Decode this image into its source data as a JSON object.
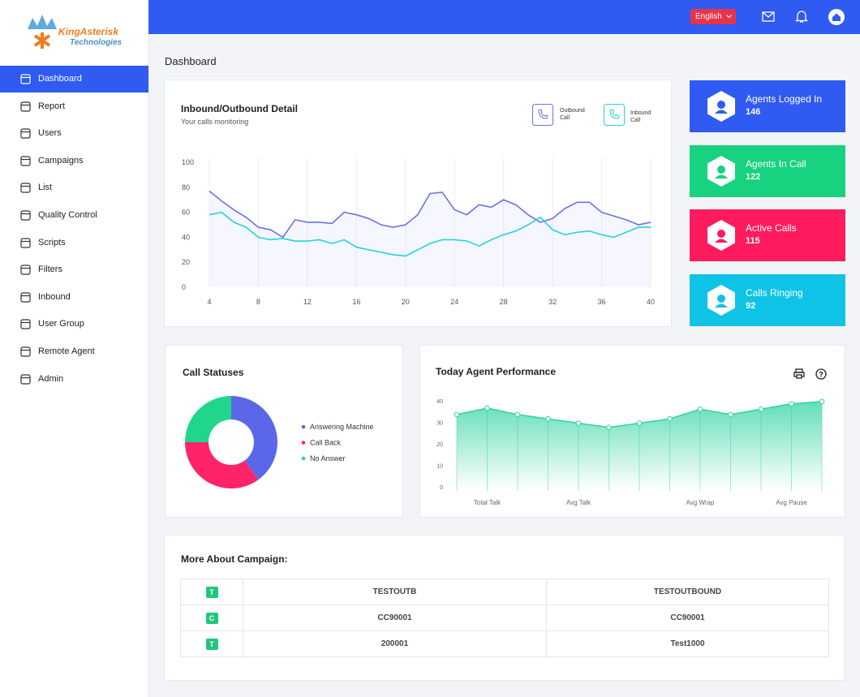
{
  "logo": {
    "brand": "KingAsterisk",
    "tagline": "Technologies"
  },
  "header": {
    "language": "English"
  },
  "nav": [
    "Dashboard",
    "Report",
    "Users",
    "Campaigns",
    "List",
    "Quality Control",
    "Scripts",
    "Filters",
    "Inbound",
    "User Group",
    "Remote Agent",
    "Admin"
  ],
  "page_title": "Dashboard",
  "stats": [
    {
      "label": "Agents Logged In",
      "value": 146,
      "color": "#2f5bf3"
    },
    {
      "label": "Agents In Call",
      "value": 122,
      "color": "#17d27e"
    },
    {
      "label": "Active Calls",
      "value": 115,
      "color": "#ff1b5e"
    },
    {
      "label": "Calls Ringing",
      "value": 92,
      "color": "#0fc3e6"
    }
  ],
  "chart_data": [
    {
      "type": "line",
      "title": "Inbound/Outbound Detail",
      "subtitle": "Your calls monitoring",
      "x": [
        4,
        5,
        6,
        7,
        8,
        9,
        10,
        11,
        12,
        13,
        14,
        15,
        16,
        17,
        18,
        19,
        20,
        21,
        22,
        23,
        24,
        25,
        26,
        27,
        28,
        29,
        30,
        31,
        32,
        33,
        34,
        35,
        36,
        37,
        38,
        39,
        40
      ],
      "xlim": [
        4,
        40
      ],
      "ylim": [
        0,
        100
      ],
      "xticks": [
        4,
        8,
        12,
        16,
        20,
        24,
        28,
        32,
        36,
        40
      ],
      "yticks": [
        0,
        20,
        40,
        60,
        80,
        100
      ],
      "grid": true,
      "series": [
        {
          "name": "Outbound Call",
          "color": "#6b72e6",
          "values": [
            77,
            69,
            62,
            56,
            48,
            46,
            40,
            54,
            52,
            52,
            51,
            60,
            58,
            55,
            50,
            48,
            50,
            58,
            75,
            76,
            62,
            58,
            66,
            64,
            70,
            66,
            58,
            52,
            55,
            63,
            68,
            68,
            60,
            57,
            54,
            50,
            52
          ]
        },
        {
          "name": "Inbound Call",
          "color": "#22d3e0",
          "values": [
            58,
            60,
            52,
            48,
            40,
            38,
            39,
            37,
            37,
            38,
            35,
            38,
            32,
            30,
            28,
            26,
            25,
            30,
            35,
            38,
            38,
            37,
            33,
            38,
            42,
            45,
            50,
            56,
            46,
            42,
            44,
            45,
            42,
            40,
            44,
            48,
            48
          ]
        }
      ]
    },
    {
      "type": "pie",
      "title": "Call Statuses",
      "categories": [
        "Answering Machine",
        "Call Back",
        "No Answer"
      ],
      "values": [
        40,
        35,
        25
      ],
      "colors": [
        "#5b67e8",
        "#ff2467",
        "#1fd68a"
      ]
    },
    {
      "type": "area",
      "title": "Today Agent Performance",
      "categories": [
        null,
        "Total Talk",
        null,
        null,
        "Avg Talk",
        null,
        null,
        null,
        "Avg Wrap",
        null,
        null,
        "Avg Pause",
        null
      ],
      "values": [
        34,
        37,
        34,
        32,
        30,
        28,
        30,
        32,
        36.5,
        34,
        36.5,
        39,
        40
      ],
      "color": "#2ed3a0",
      "ylim": [
        0,
        40
      ],
      "yticks": [
        0,
        10,
        20,
        30,
        40
      ]
    }
  ],
  "campaign": {
    "title": "More About Campaign:",
    "rows": [
      [
        "T",
        "TESTOUTB",
        "TESTOUTBOUND"
      ],
      [
        "C",
        "CC90001",
        "CC90001"
      ],
      [
        "T",
        "200001",
        "Test1000"
      ]
    ]
  }
}
